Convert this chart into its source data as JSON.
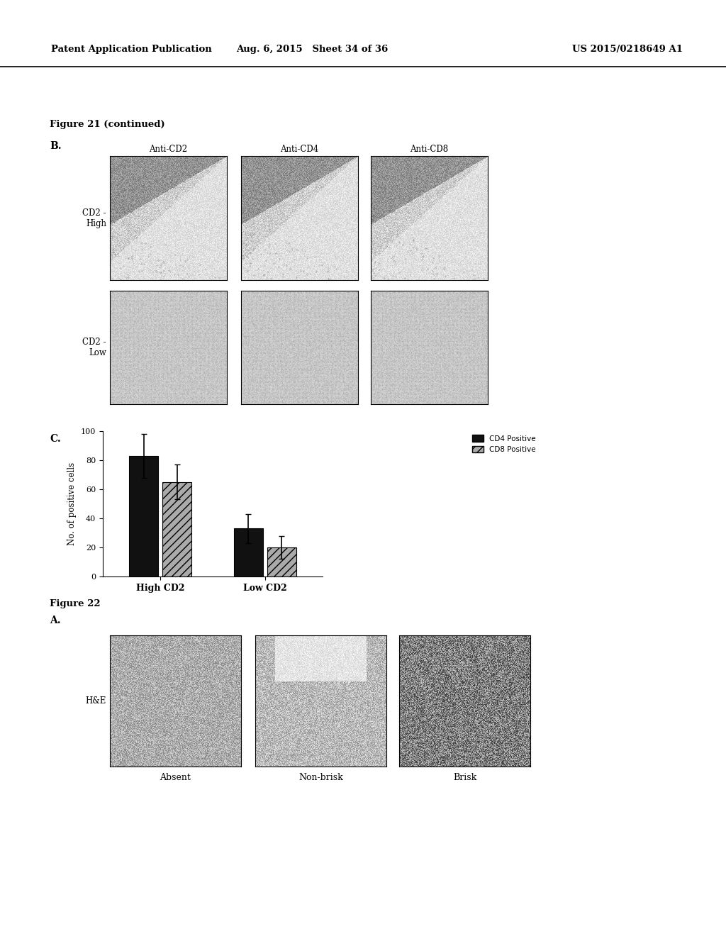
{
  "header_left": "Patent Application Publication",
  "header_mid": "Aug. 6, 2015   Sheet 34 of 36",
  "header_right": "US 2015/0218649 A1",
  "fig21_label": "Figure 21 (continued)",
  "panel_B_label": "B.",
  "panel_C_label": "C.",
  "col_labels_B": [
    "Anti-CD2",
    "Anti-CD4",
    "Anti-CD8"
  ],
  "row_labels_B": [
    "CD2 -\nHigh",
    "CD2 -\nLow"
  ],
  "bar_categories": [
    "High CD2",
    "Low CD2"
  ],
  "cd4_values": [
    83,
    33
  ],
  "cd8_values": [
    65,
    20
  ],
  "cd4_errors": [
    15,
    10
  ],
  "cd8_errors": [
    12,
    8
  ],
  "ylabel_chart": "No. of positive cells",
  "ylim": [
    0,
    100
  ],
  "yticks": [
    0,
    20,
    40,
    60,
    80,
    100
  ],
  "legend_cd4": "CD4 Positive",
  "legend_cd8": "CD8 Positive",
  "fig22_label": "Figure 22",
  "panel_A_label": "A.",
  "row_label_22": "H&E",
  "col_labels_22": [
    "Absent",
    "Non-brisk",
    "Brisk"
  ],
  "bg_color": "#ffffff",
  "text_color": "#000000",
  "cd4_bar_color": "#111111",
  "cd8_bar_color": "#aaaaaa",
  "cd8_bar_hatch": "///",
  "header_fontsize": 9.5,
  "label_fontsize": 8.5,
  "axis_fontsize": 8,
  "fig_title_fontsize": 9.5,
  "panel_label_fontsize": 10
}
